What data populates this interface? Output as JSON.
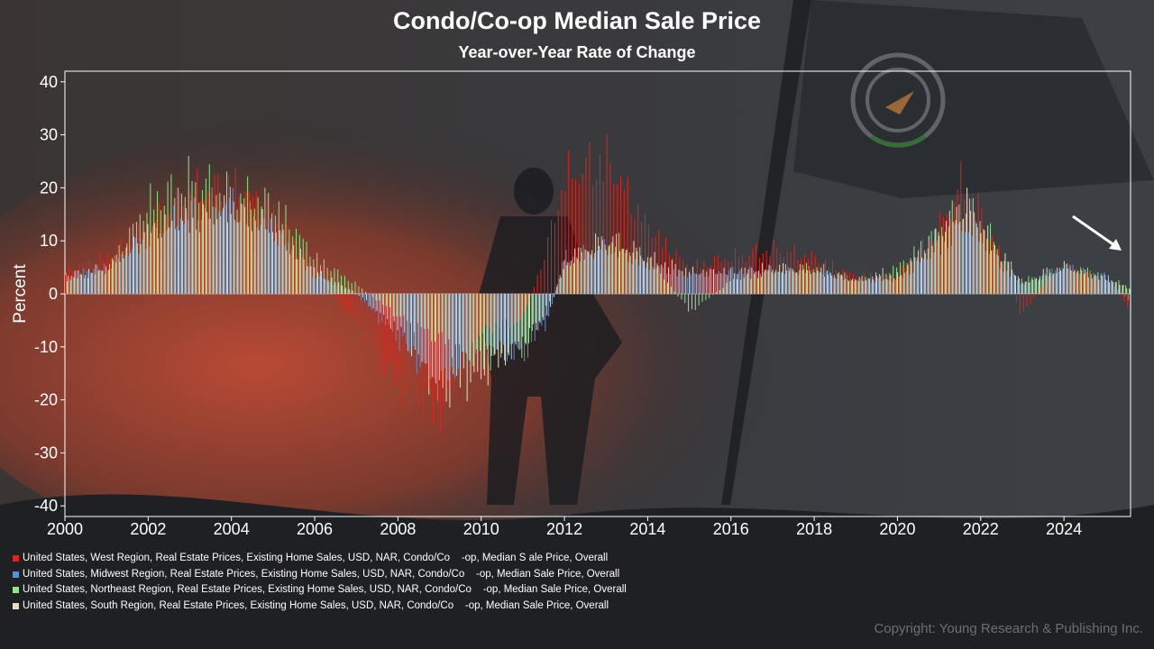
{
  "chart_data": {
    "type": "bar",
    "title": "Condo/Co-op Median Sale Price",
    "subtitle": "Year-over-Year Rate of Change",
    "ylabel": "Percent",
    "xlabel": "",
    "xlim": [
      2000,
      2025.6
    ],
    "ylim": [
      -42,
      42
    ],
    "x_ticks": [
      "2000",
      "2002",
      "2004",
      "2006",
      "2008",
      "2010",
      "2012",
      "2014",
      "2016",
      "2018",
      "2020",
      "2022",
      "2024"
    ],
    "y_ticks": [
      "40",
      "30",
      "20",
      "10",
      "0",
      "-10",
      "-20",
      "-30",
      "-40"
    ],
    "grid": false,
    "legend_position": "bottom-left",
    "series": [
      {
        "name": "United States, West Region, Real Estate Prices, Existing Home Sales, USD, NAR, Condo/Co    -op, Median S ale Price, Overall",
        "color": "#e0231b"
      },
      {
        "name": "United States, Midwest Region, Real Estate Prices, Existing Home Sales, USD, NAR, Condo/Co    -op, Median Sale Price, Overall",
        "color": "#5b8fd4"
      },
      {
        "name": "United States, Northeast Region, Real Estate Prices, Existing Home Sales, USD, NAR, Condo/Co    -op, Median Sale Price, Overall",
        "color": "#8ee68a"
      },
      {
        "name": "United States, South Region, Real Estate Prices, Existing Home Sales, USD, NAR, Condo/Co    -op, Median Sale Price, Overall",
        "color": "#e8dcc8"
      }
    ],
    "envelope": {
      "West": [
        [
          2000,
          5
        ],
        [
          2001,
          8
        ],
        [
          2002,
          14
        ],
        [
          2003,
          22
        ],
        [
          2004,
          24
        ],
        [
          2005,
          18
        ],
        [
          2006,
          5
        ],
        [
          2007,
          -6
        ],
        [
          2008,
          -20
        ],
        [
          2009,
          -27
        ],
        [
          2010,
          -8
        ],
        [
          2011,
          -6
        ],
        [
          2011.6,
          10
        ],
        [
          2012,
          25
        ],
        [
          2013,
          30
        ],
        [
          2014,
          15
        ],
        [
          2015,
          6
        ],
        [
          2016,
          8
        ],
        [
          2017,
          10
        ],
        [
          2018,
          8
        ],
        [
          2019,
          4
        ],
        [
          2020,
          4
        ],
        [
          2021,
          14
        ],
        [
          2021.6,
          25
        ],
        [
          2022,
          18
        ],
        [
          2022.5,
          8
        ],
        [
          2023,
          -5
        ],
        [
          2023.5,
          2
        ],
        [
          2024,
          6
        ],
        [
          2025,
          3
        ],
        [
          2025.6,
          -3
        ]
      ],
      "Midwest": [
        [
          2000,
          4
        ],
        [
          2001,
          6
        ],
        [
          2002,
          12
        ],
        [
          2003,
          18
        ],
        [
          2004,
          20
        ],
        [
          2005,
          14
        ],
        [
          2006,
          4
        ],
        [
          2007,
          0
        ],
        [
          2008,
          -10
        ],
        [
          2009,
          -20
        ],
        [
          2010,
          -10
        ],
        [
          2011,
          -14
        ],
        [
          2011.6,
          -6
        ],
        [
          2012,
          8
        ],
        [
          2013,
          10
        ],
        [
          2014,
          6
        ],
        [
          2015,
          4
        ],
        [
          2016,
          5
        ],
        [
          2017,
          5
        ],
        [
          2018,
          5
        ],
        [
          2019,
          3
        ],
        [
          2020,
          3
        ],
        [
          2021,
          10
        ],
        [
          2021.6,
          15
        ],
        [
          2022,
          12
        ],
        [
          2022.5,
          6
        ],
        [
          2023,
          2
        ],
        [
          2023.5,
          4
        ],
        [
          2024,
          6
        ],
        [
          2025,
          4
        ],
        [
          2025.6,
          -2
        ]
      ],
      "Northeast": [
        [
          2000,
          3
        ],
        [
          2001,
          5
        ],
        [
          2002,
          20
        ],
        [
          2003,
          25
        ],
        [
          2004,
          22
        ],
        [
          2005,
          20
        ],
        [
          2006,
          8
        ],
        [
          2007,
          2
        ],
        [
          2008,
          -5
        ],
        [
          2009,
          -10
        ],
        [
          2010,
          -15
        ],
        [
          2011,
          -12
        ],
        [
          2011.6,
          -2
        ],
        [
          2012,
          6
        ],
        [
          2013,
          12
        ],
        [
          2014,
          8
        ],
        [
          2015,
          -4
        ],
        [
          2016,
          3
        ],
        [
          2017,
          5
        ],
        [
          2018,
          6
        ],
        [
          2019,
          3
        ],
        [
          2020,
          6
        ],
        [
          2021,
          14
        ],
        [
          2021.6,
          20
        ],
        [
          2022,
          16
        ],
        [
          2022.5,
          8
        ],
        [
          2023,
          3
        ],
        [
          2023.5,
          4
        ],
        [
          2024,
          6
        ],
        [
          2025,
          4
        ],
        [
          2025.6,
          1
        ]
      ],
      "South": [
        [
          2000,
          4
        ],
        [
          2001,
          6
        ],
        [
          2002,
          14
        ],
        [
          2003,
          16
        ],
        [
          2004,
          18
        ],
        [
          2005,
          14
        ],
        [
          2006,
          5
        ],
        [
          2007,
          0
        ],
        [
          2008,
          -8
        ],
        [
          2009,
          -22
        ],
        [
          2010,
          -18
        ],
        [
          2011,
          -10
        ],
        [
          2011.6,
          -4
        ],
        [
          2012,
          8
        ],
        [
          2013,
          12
        ],
        [
          2014,
          8
        ],
        [
          2015,
          5
        ],
        [
          2016,
          5
        ],
        [
          2017,
          6
        ],
        [
          2018,
          5
        ],
        [
          2019,
          3
        ],
        [
          2020,
          4
        ],
        [
          2021,
          14
        ],
        [
          2021.6,
          20
        ],
        [
          2022,
          14
        ],
        [
          2022.5,
          8
        ],
        [
          2023,
          2
        ],
        [
          2023.5,
          5
        ],
        [
          2024,
          6
        ],
        [
          2025,
          3
        ],
        [
          2025.6,
          1
        ]
      ]
    },
    "annotation": "arrow pointing to latest values"
  },
  "copyright": "Copyright: Young Research & Publishing Inc."
}
